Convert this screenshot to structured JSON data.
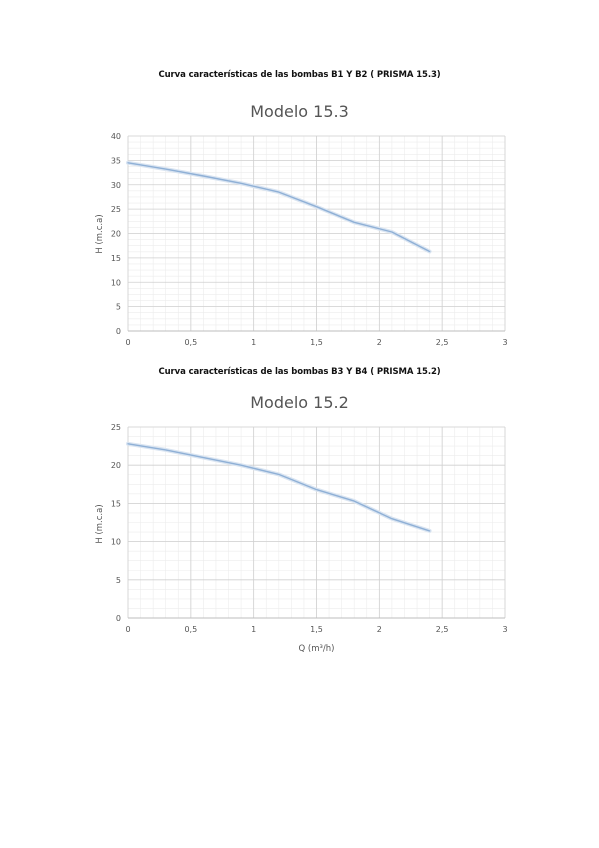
{
  "chart_data": [
    {
      "type": "line",
      "caption": "Curva características de las bombas B1 Y B2 ( PRISMA 15.3)",
      "title": "Modelo 15.3",
      "xlabel": "",
      "ylabel": "H (m.c.a)",
      "xlim": [
        0,
        3
      ],
      "ylim": [
        0,
        40
      ],
      "xticks": [
        "0",
        "0,5",
        "1",
        "1,5",
        "2",
        "2,5",
        "3"
      ],
      "yticks": [
        "0",
        "5",
        "10",
        "15",
        "20",
        "25",
        "30",
        "35",
        "40"
      ],
      "grid": true,
      "line_color": "#8fb0d6",
      "series": [
        {
          "x": [
            0,
            0.3,
            0.6,
            0.9,
            1.2,
            1.5,
            1.8,
            2.1,
            2.4
          ],
          "values": [
            34.5,
            33.2,
            31.8,
            30.3,
            28.5,
            25.5,
            22.3,
            20.3,
            16.3
          ]
        }
      ]
    },
    {
      "type": "line",
      "caption": "Curva características de las bombas B3 Y B4 ( PRISMA 15.2)",
      "title": "Modelo 15.2",
      "xlabel": "Q (m³/h)",
      "ylabel": "H (m.c.a)",
      "xlim": [
        0,
        3
      ],
      "ylim": [
        0,
        25
      ],
      "xticks": [
        "0",
        "0,5",
        "1",
        "1,5",
        "2",
        "2,5",
        "3"
      ],
      "yticks": [
        "0",
        "5",
        "10",
        "15",
        "20",
        "25"
      ],
      "grid": true,
      "line_color": "#8fb0d6",
      "series": [
        {
          "x": [
            0,
            0.3,
            0.6,
            0.9,
            1.2,
            1.5,
            1.8,
            2.1,
            2.4
          ],
          "values": [
            22.8,
            22.0,
            21.0,
            20.0,
            18.8,
            16.8,
            15.3,
            13.0,
            11.4
          ]
        }
      ]
    }
  ]
}
